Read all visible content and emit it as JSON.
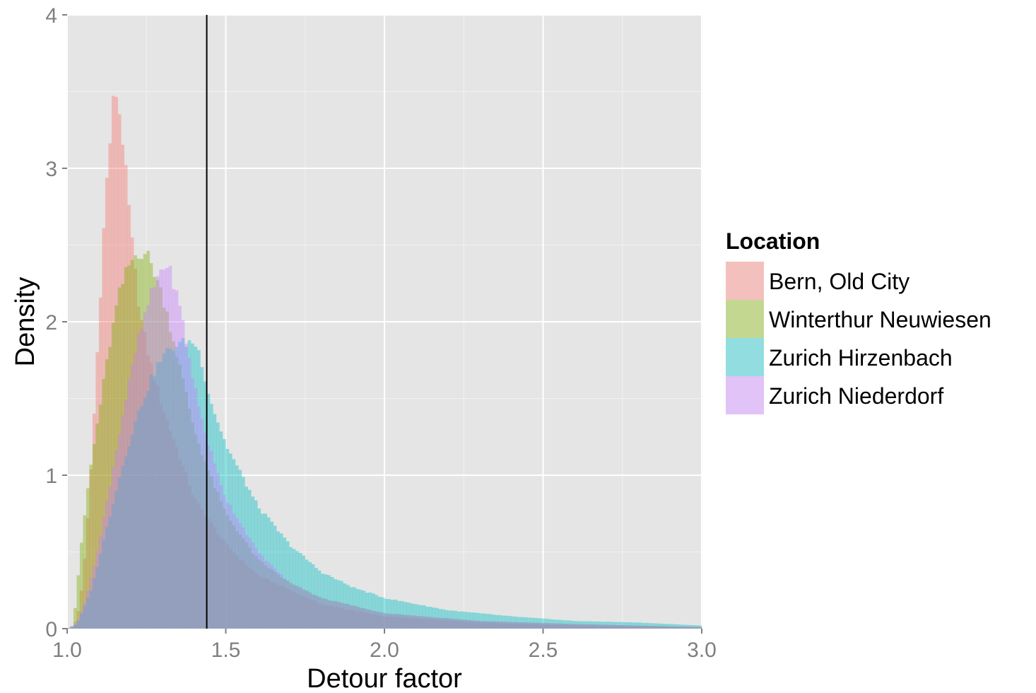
{
  "chart_data": {
    "type": "bar",
    "subtype": "overlaid histogram (density)",
    "xlabel": "Detour factor",
    "ylabel": "Density",
    "xlim": [
      1.0,
      3.0
    ],
    "ylim": [
      0,
      4
    ],
    "x_ticks": [
      "1.0",
      "1.5",
      "2.0",
      "2.5",
      "3.0"
    ],
    "y_ticks": [
      "0",
      "1",
      "2",
      "3",
      "4"
    ],
    "grid": true,
    "bar_opacity": 0.4,
    "legend": {
      "title": "Location",
      "placement": "right"
    },
    "reference_line": {
      "axis": "x",
      "value": 1.44,
      "color": "#000000"
    },
    "series": [
      {
        "name": "Bern, Old City",
        "color": "#f8766d",
        "points": [
          [
            1.0,
            0
          ],
          [
            1.02,
            0.01
          ],
          [
            1.04,
            0.15
          ],
          [
            1.06,
            0.55
          ],
          [
            1.08,
            1.2
          ],
          [
            1.1,
            2.0
          ],
          [
            1.12,
            2.8
          ],
          [
            1.14,
            3.3
          ],
          [
            1.15,
            3.55
          ],
          [
            1.17,
            3.3
          ],
          [
            1.19,
            2.85
          ],
          [
            1.21,
            2.4
          ],
          [
            1.23,
            2.05
          ],
          [
            1.26,
            1.75
          ],
          [
            1.3,
            1.45
          ],
          [
            1.35,
            1.15
          ],
          [
            1.4,
            0.85
          ],
          [
            1.5,
            0.55
          ],
          [
            1.6,
            0.35
          ],
          [
            1.8,
            0.16
          ],
          [
            2.0,
            0.08
          ],
          [
            2.3,
            0.04
          ],
          [
            2.6,
            0.02
          ],
          [
            3.0,
            0.01
          ]
        ]
      },
      {
        "name": "Winterthur Neuwiesen",
        "color": "#7cae00",
        "points": [
          [
            1.0,
            0
          ],
          [
            1.02,
            0.02
          ],
          [
            1.03,
            0.25
          ],
          [
            1.05,
            0.65
          ],
          [
            1.07,
            1.0
          ],
          [
            1.1,
            1.4
          ],
          [
            1.13,
            1.8
          ],
          [
            1.16,
            2.15
          ],
          [
            1.19,
            2.35
          ],
          [
            1.22,
            2.45
          ],
          [
            1.25,
            2.45
          ],
          [
            1.28,
            2.3
          ],
          [
            1.31,
            2.1
          ],
          [
            1.35,
            1.75
          ],
          [
            1.4,
            1.3
          ],
          [
            1.45,
            1.0
          ],
          [
            1.5,
            0.75
          ],
          [
            1.6,
            0.45
          ],
          [
            1.7,
            0.3
          ],
          [
            1.8,
            0.2
          ],
          [
            2.0,
            0.1
          ],
          [
            2.3,
            0.05
          ],
          [
            2.6,
            0.03
          ],
          [
            3.0,
            0.01
          ]
        ]
      },
      {
        "name": "Zurich Hirzenbach",
        "color": "#00bfc4",
        "points": [
          [
            1.0,
            0
          ],
          [
            1.03,
            0.03
          ],
          [
            1.05,
            0.12
          ],
          [
            1.08,
            0.28
          ],
          [
            1.1,
            0.45
          ],
          [
            1.13,
            0.7
          ],
          [
            1.16,
            0.95
          ],
          [
            1.2,
            1.25
          ],
          [
            1.24,
            1.5
          ],
          [
            1.28,
            1.7
          ],
          [
            1.32,
            1.82
          ],
          [
            1.36,
            1.86
          ],
          [
            1.4,
            1.87
          ],
          [
            1.42,
            1.78
          ],
          [
            1.45,
            1.5
          ],
          [
            1.5,
            1.2
          ],
          [
            1.55,
            1.0
          ],
          [
            1.6,
            0.8
          ],
          [
            1.7,
            0.55
          ],
          [
            1.8,
            0.37
          ],
          [
            1.9,
            0.27
          ],
          [
            2.0,
            0.2
          ],
          [
            2.2,
            0.12
          ],
          [
            2.4,
            0.08
          ],
          [
            2.6,
            0.05
          ],
          [
            2.8,
            0.04
          ],
          [
            3.0,
            0.02
          ]
        ]
      },
      {
        "name": "Zurich Niederdorf",
        "color": "#c77cff",
        "points": [
          [
            1.0,
            0
          ],
          [
            1.03,
            0.03
          ],
          [
            1.06,
            0.2
          ],
          [
            1.1,
            0.55
          ],
          [
            1.14,
            1.0
          ],
          [
            1.18,
            1.45
          ],
          [
            1.22,
            1.85
          ],
          [
            1.26,
            2.15
          ],
          [
            1.29,
            2.32
          ],
          [
            1.31,
            2.38
          ],
          [
            1.33,
            2.3
          ],
          [
            1.36,
            2.05
          ],
          [
            1.39,
            1.7
          ],
          [
            1.42,
            1.4
          ],
          [
            1.46,
            1.1
          ],
          [
            1.5,
            0.85
          ],
          [
            1.6,
            0.5
          ],
          [
            1.7,
            0.3
          ],
          [
            1.8,
            0.2
          ],
          [
            2.0,
            0.1
          ],
          [
            2.3,
            0.05
          ],
          [
            2.6,
            0.03
          ],
          [
            3.0,
            0.01
          ]
        ]
      }
    ]
  }
}
